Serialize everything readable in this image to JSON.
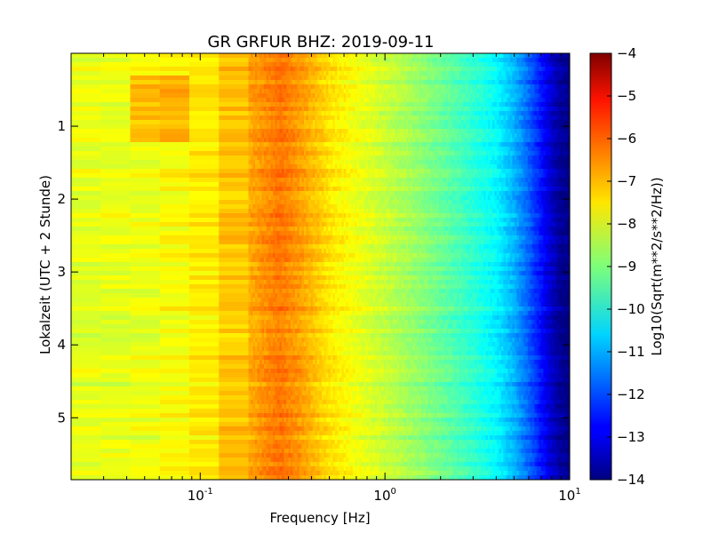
{
  "chart_data": {
    "type": "heatmap",
    "title": "GR GRFUR BHZ: 2019-09-11",
    "xlabel": "Frequency [Hz]",
    "ylabel": "Lokalzeit (UTC + 2 Stunde)",
    "colorbar_label": "Log10(Sqrt(m**2/s**2/Hz))",
    "x_scale": "log",
    "xlim": [
      0.02,
      10
    ],
    "ylim": [
      5.85,
      0
    ],
    "x_ticks": [
      {
        "value": 0.1,
        "base": "10",
        "exp": "-1"
      },
      {
        "value": 1,
        "base": "10",
        "exp": "0"
      },
      {
        "value": 10,
        "base": "10",
        "exp": "1"
      }
    ],
    "y_ticks": [
      {
        "value": 1,
        "label": "1"
      },
      {
        "value": 2,
        "label": "2"
      },
      {
        "value": 3,
        "label": "3"
      },
      {
        "value": 4,
        "label": "4"
      },
      {
        "value": 5,
        "label": "5"
      }
    ],
    "colorbar_range": [
      -14,
      -4
    ],
    "colorbar_ticks": [
      {
        "value": -4,
        "label": "−4"
      },
      {
        "value": -5,
        "label": "−5"
      },
      {
        "value": -6,
        "label": "−6"
      },
      {
        "value": -7,
        "label": "−7"
      },
      {
        "value": -8,
        "label": "−8"
      },
      {
        "value": -9,
        "label": "−9"
      },
      {
        "value": -10,
        "label": "−10"
      },
      {
        "value": -11,
        "label": "−11"
      },
      {
        "value": -12,
        "label": "−12"
      },
      {
        "value": -13,
        "label": "−13"
      },
      {
        "value": -14,
        "label": "−14"
      }
    ],
    "colormap": "jet",
    "spectrum_profile": {
      "frequency_hz": [
        0.02,
        0.04,
        0.07,
        0.1,
        0.14,
        0.2,
        0.27,
        0.35,
        0.5,
        0.7,
        1.0,
        1.5,
        2.0,
        3.0,
        4.0,
        5.0,
        6.0,
        7.0,
        8.0,
        9.0,
        10.0
      ],
      "log10_amplitude": [
        -8.0,
        -8.0,
        -7.8,
        -7.6,
        -7.3,
        -6.8,
        -6.4,
        -6.8,
        -7.5,
        -7.9,
        -8.3,
        -8.8,
        -9.2,
        -9.8,
        -10.3,
        -11.0,
        -11.8,
        -12.6,
        -13.3,
        -13.8,
        -14.0
      ]
    },
    "early_hours_excess": {
      "time_range_h": [
        0.3,
        1.2
      ],
      "frequency_range_hz": [
        0.04,
        0.1
      ],
      "log10_increase": 0.8
    }
  }
}
